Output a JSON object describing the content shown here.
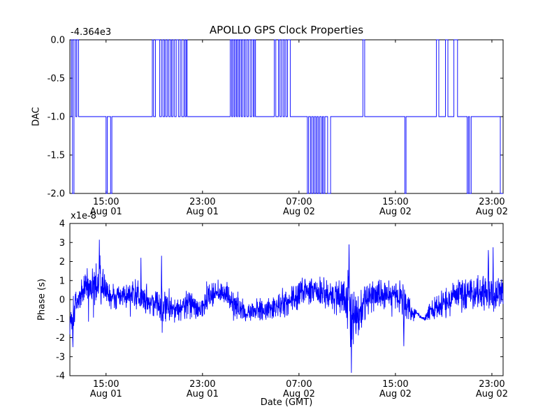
{
  "figure": {
    "background": "#ffffff",
    "line_color": "#0000ff",
    "axis_color": "#000000"
  },
  "chart_data": [
    {
      "type": "line",
      "subplot": "top",
      "title": "APOLLO GPS Clock Properties",
      "ylabel": "DAC",
      "offset_text": "-4.364e3",
      "xlim": [
        0,
        35.93
      ],
      "ylim": [
        -2.0,
        0.0
      ],
      "ytick_values": [
        0.0,
        -0.5,
        -1.0,
        -1.5,
        -2.0
      ],
      "ytick_labels": [
        "0.0",
        "-0.5",
        "-1.0",
        "-1.5",
        "-2.0"
      ],
      "xticks": [
        {
          "t": 3,
          "time": "15:00",
          "date": "Aug 01"
        },
        {
          "t": 11,
          "time": "23:00",
          "date": "Aug 01"
        },
        {
          "t": 19,
          "time": "07:00",
          "date": "Aug 02"
        },
        {
          "t": 27,
          "time": "15:00",
          "date": "Aug 02"
        },
        {
          "t": 35,
          "time": "23:00",
          "date": "Aug 02"
        }
      ],
      "steps": [
        [
          0.0,
          -1
        ],
        [
          0.12,
          0
        ],
        [
          0.22,
          -2
        ],
        [
          0.34,
          0
        ],
        [
          0.48,
          -1
        ],
        [
          0.58,
          0
        ],
        [
          0.72,
          -1
        ],
        [
          3.0,
          -2
        ],
        [
          3.1,
          -1
        ],
        [
          3.38,
          -2
        ],
        [
          3.48,
          -1
        ],
        [
          6.84,
          0
        ],
        [
          6.94,
          -1
        ],
        [
          7.1,
          0
        ],
        [
          7.45,
          -1
        ],
        [
          7.6,
          0
        ],
        [
          7.72,
          -1
        ],
        [
          7.85,
          0
        ],
        [
          7.95,
          -1
        ],
        [
          8.08,
          0
        ],
        [
          8.2,
          -1
        ],
        [
          8.34,
          0
        ],
        [
          8.44,
          -1
        ],
        [
          8.56,
          0
        ],
        [
          8.68,
          -1
        ],
        [
          8.82,
          0
        ],
        [
          9.0,
          -1
        ],
        [
          9.15,
          0
        ],
        [
          9.28,
          -1
        ],
        [
          9.45,
          0
        ],
        [
          9.55,
          -1
        ],
        [
          9.65,
          0
        ],
        [
          9.73,
          -1
        ],
        [
          13.3,
          0
        ],
        [
          13.42,
          -1
        ],
        [
          13.5,
          0
        ],
        [
          13.62,
          -1
        ],
        [
          13.7,
          0
        ],
        [
          13.82,
          -1
        ],
        [
          13.9,
          0
        ],
        [
          14.02,
          -1
        ],
        [
          14.1,
          0
        ],
        [
          14.22,
          -1
        ],
        [
          14.32,
          0
        ],
        [
          14.45,
          -1
        ],
        [
          14.55,
          0
        ],
        [
          14.68,
          -1
        ],
        [
          14.8,
          0
        ],
        [
          14.95,
          -1
        ],
        [
          15.08,
          0
        ],
        [
          15.22,
          -1
        ],
        [
          15.3,
          0
        ],
        [
          15.4,
          -1
        ],
        [
          16.95,
          0
        ],
        [
          17.08,
          -1
        ],
        [
          17.3,
          0
        ],
        [
          17.42,
          -1
        ],
        [
          17.55,
          0
        ],
        [
          17.68,
          -1
        ],
        [
          17.8,
          0
        ],
        [
          17.92,
          -1
        ],
        [
          18.05,
          0
        ],
        [
          18.28,
          -1
        ],
        [
          19.7,
          -2
        ],
        [
          19.8,
          -1
        ],
        [
          19.95,
          -2
        ],
        [
          20.05,
          -1
        ],
        [
          20.18,
          -2
        ],
        [
          20.28,
          -1
        ],
        [
          20.4,
          -2
        ],
        [
          20.5,
          -1
        ],
        [
          20.6,
          -2
        ],
        [
          20.72,
          -1
        ],
        [
          20.85,
          -2
        ],
        [
          20.95,
          -1
        ],
        [
          21.05,
          -2
        ],
        [
          21.15,
          -1
        ],
        [
          21.38,
          -2
        ],
        [
          21.62,
          -1
        ],
        [
          24.3,
          0
        ],
        [
          24.45,
          -1
        ],
        [
          27.78,
          -2
        ],
        [
          27.88,
          -1
        ],
        [
          30.4,
          0
        ],
        [
          30.6,
          -1
        ],
        [
          31.15,
          0
        ],
        [
          31.35,
          -1
        ],
        [
          31.85,
          0
        ],
        [
          32.15,
          -1
        ],
        [
          32.95,
          -2
        ],
        [
          33.05,
          -1
        ],
        [
          33.15,
          -2
        ],
        [
          33.28,
          -1
        ],
        [
          35.7,
          -2
        ]
      ]
    },
    {
      "type": "line",
      "subplot": "bottom",
      "ylabel": "Phase (s)",
      "scale_text": "x1e-8",
      "xlabel": "Date (GMT)",
      "xlim": [
        0,
        35.93
      ],
      "ylim": [
        -4,
        4
      ],
      "ytick_values": [
        4,
        3,
        2,
        1,
        0,
        -1,
        -2,
        -3,
        -4
      ],
      "ytick_labels": [
        "4",
        "3",
        "2",
        "1",
        "0",
        "-1",
        "-2",
        "-3",
        "-4"
      ],
      "xticks": [
        {
          "t": 3,
          "time": "15:00",
          "date": "Aug 01"
        },
        {
          "t": 11,
          "time": "23:00",
          "date": "Aug 01"
        },
        {
          "t": 19,
          "time": "07:00",
          "date": "Aug 02"
        },
        {
          "t": 27,
          "time": "15:00",
          "date": "Aug 02"
        },
        {
          "t": 35,
          "time": "23:00",
          "date": "Aug 02"
        }
      ],
      "noise": {
        "seed": 1337,
        "samples": 2000,
        "keyframes": [
          [
            0,
            -1.2,
            1.0
          ],
          [
            0.5,
            -0.2,
            1.0
          ],
          [
            1.2,
            0.6,
            1.1
          ],
          [
            2.0,
            0.7,
            1.3
          ],
          [
            2.5,
            0.8,
            1.4
          ],
          [
            3.2,
            0.2,
            0.8
          ],
          [
            4.5,
            0.1,
            0.7
          ],
          [
            5.8,
            0.4,
            1.0
          ],
          [
            6.5,
            -0.1,
            0.9
          ],
          [
            7.5,
            -0.4,
            0.9
          ],
          [
            8.2,
            -0.2,
            1.0
          ],
          [
            9.0,
            -0.5,
            0.8
          ],
          [
            9.8,
            -0.2,
            0.9
          ],
          [
            10.8,
            -0.5,
            0.7
          ],
          [
            11.5,
            0.2,
            0.8
          ],
          [
            12.2,
            0.5,
            0.8
          ],
          [
            13.0,
            0.2,
            0.8
          ],
          [
            14.0,
            -0.5,
            0.7
          ],
          [
            15.0,
            -0.6,
            0.6
          ],
          [
            16.0,
            -0.5,
            0.7
          ],
          [
            17.0,
            -0.4,
            0.7
          ],
          [
            18.0,
            -0.2,
            0.8
          ],
          [
            18.8,
            0.2,
            0.9
          ],
          [
            19.6,
            0.6,
            0.9
          ],
          [
            20.6,
            0.5,
            1.0
          ],
          [
            21.6,
            0.1,
            1.0
          ],
          [
            22.4,
            0.2,
            1.1
          ],
          [
            23.0,
            0.3,
            1.6
          ],
          [
            23.4,
            -0.8,
            2.4
          ],
          [
            23.8,
            -0.9,
            1.6
          ],
          [
            24.4,
            -0.2,
            1.2
          ],
          [
            25.2,
            0.3,
            1.0
          ],
          [
            26.2,
            0.3,
            1.0
          ],
          [
            27.0,
            0.4,
            1.0
          ],
          [
            27.6,
            -0.2,
            1.2
          ],
          [
            28.3,
            -0.6,
            0.8
          ],
          [
            28.8,
            -0.75,
            0.15
          ],
          [
            29.4,
            -1.05,
            0.12
          ],
          [
            29.8,
            -0.6,
            0.5
          ],
          [
            30.6,
            -0.3,
            0.8
          ],
          [
            31.4,
            -0.1,
            0.9
          ],
          [
            32.2,
            0.4,
            0.9
          ],
          [
            33.0,
            0.2,
            0.9
          ],
          [
            33.8,
            0.4,
            1.0
          ],
          [
            34.6,
            0.5,
            1.1
          ],
          [
            35.3,
            0.3,
            1.1
          ],
          [
            35.93,
            0.4,
            1.0
          ]
        ],
        "spikes": [
          [
            0.25,
            -2.5
          ],
          [
            2.45,
            3.15
          ],
          [
            5.9,
            2.2
          ],
          [
            7.6,
            2.3
          ],
          [
            23.15,
            2.9
          ],
          [
            23.35,
            -3.85
          ],
          [
            27.7,
            -2.45
          ],
          [
            34.7,
            2.6
          ],
          [
            35.1,
            2.75
          ]
        ]
      }
    }
  ]
}
